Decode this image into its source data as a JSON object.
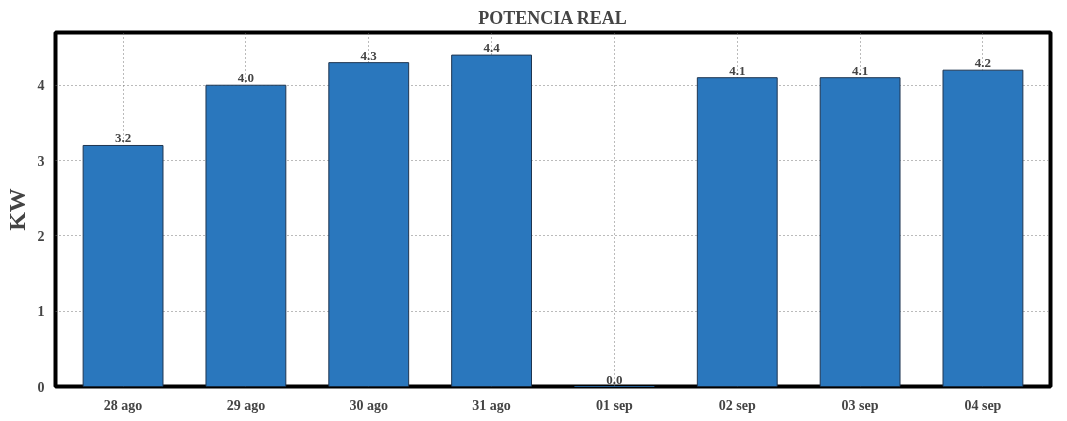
{
  "chart_data": {
    "type": "bar",
    "title": "POTENCIA REAL",
    "ylabel": "KW",
    "categories": [
      "28 ago",
      "29 ago",
      "30 ago",
      "31 ago",
      "01 sep",
      "02 sep",
      "03 sep",
      "04 sep"
    ],
    "values": [
      3.2,
      4.0,
      4.3,
      4.4,
      0.0,
      4.1,
      4.1,
      4.2
    ],
    "value_labels": [
      "3.2",
      "4.0",
      "4.3",
      "4.4",
      "0.0",
      "4.1",
      "4.1",
      "4.2"
    ],
    "color": "#2a77bd",
    "ylim": [
      0,
      4.7
    ],
    "yticks": [
      0,
      1,
      2,
      3,
      4
    ],
    "grid": true
  }
}
